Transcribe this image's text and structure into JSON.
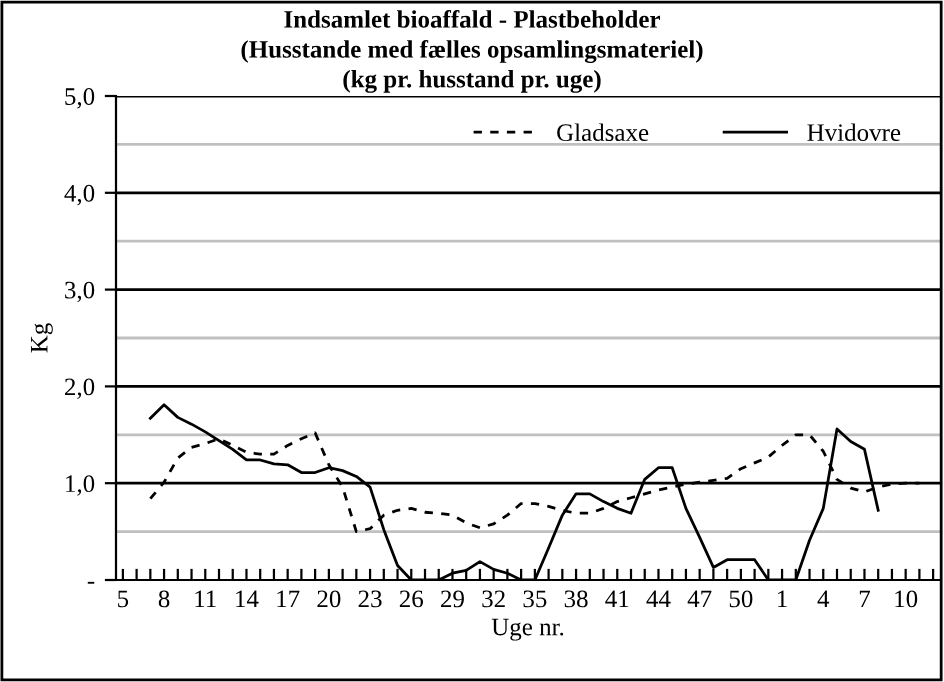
{
  "chart_data": {
    "type": "line",
    "title": "Indsamlet bioaffald - Plastbeholder\n(Husstande med fælles opsamlingsmateriel)\n(kg pr. husstand pr. uge)",
    "xlabel": "Uge nr.",
    "ylabel": "Kg",
    "categories": [
      "5",
      null,
      null,
      "8",
      null,
      null,
      "11",
      null,
      null,
      "14",
      null,
      null,
      "17",
      null,
      null,
      "20",
      null,
      null,
      "23",
      null,
      null,
      "26",
      null,
      null,
      "29",
      null,
      null,
      "32",
      null,
      null,
      "35",
      null,
      null,
      "38",
      null,
      null,
      "41",
      null,
      null,
      "44",
      null,
      null,
      "47",
      null,
      null,
      "50",
      null,
      null,
      "1",
      null,
      null,
      "4",
      null,
      null,
      "7",
      null,
      null,
      "10",
      null,
      null
    ],
    "series": [
      {
        "name": "Gladsaxe",
        "color": "#000000",
        "line_style": "dashed",
        "values": [
          null,
          null,
          0.84,
          1.01,
          1.26,
          1.37,
          1.41,
          1.46,
          1.39,
          1.32,
          1.3,
          1.3,
          1.39,
          1.46,
          1.52,
          1.19,
          0.96,
          0.5,
          0.53,
          0.67,
          0.72,
          0.74,
          0.7,
          0.69,
          0.67,
          0.59,
          0.54,
          0.58,
          0.67,
          0.79,
          0.79,
          0.76,
          0.72,
          0.69,
          0.69,
          0.74,
          0.81,
          0.85,
          0.89,
          0.93,
          0.96,
          0.99,
          1.01,
          1.03,
          1.05,
          1.15,
          1.21,
          1.27,
          1.39,
          1.5,
          1.5,
          1.33,
          1.04,
          0.95,
          0.91,
          0.96,
          0.99,
          1.0,
          1.0,
          null
        ]
      },
      {
        "name": "Hvidovre",
        "color": "#000000",
        "line_style": "solid",
        "values": [
          null,
          null,
          1.67,
          1.81,
          1.68,
          1.61,
          1.53,
          1.44,
          1.35,
          1.24,
          1.24,
          1.2,
          1.19,
          1.11,
          1.11,
          1.16,
          1.13,
          1.07,
          0.96,
          0.52,
          0.15,
          0,
          0,
          0,
          0.07,
          0.1,
          0.19,
          0.11,
          0.07,
          0,
          0,
          0.33,
          0.67,
          0.89,
          0.89,
          0.81,
          0.74,
          0.69,
          1.04,
          1.16,
          1.16,
          0.74,
          0.44,
          0.13,
          0.21,
          0.21,
          0.21,
          0,
          0,
          0,
          0.41,
          0.74,
          1.56,
          1.43,
          1.35,
          0.72,
          null,
          null,
          null,
          null
        ]
      }
    ],
    "ylim": [
      0,
      5
    ],
    "yticks": [
      {
        "value": 0,
        "label": "-"
      },
      {
        "value": 1,
        "label": "1,0"
      },
      {
        "value": 2,
        "label": "2,0"
      },
      {
        "value": 3,
        "label": "3,0"
      },
      {
        "value": 4,
        "label": "4,0"
      },
      {
        "value": 5,
        "label": "5,0"
      }
    ],
    "grid": "y",
    "legend": "top right",
    "marker": "none"
  }
}
